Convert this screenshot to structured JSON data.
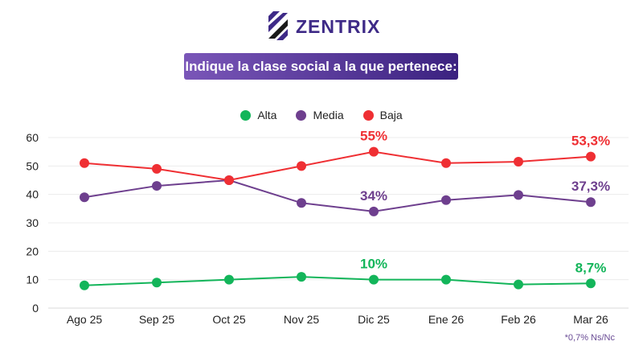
{
  "brand": {
    "name": "ZENTRIX"
  },
  "title": "Indique la clase social a la que pertenece:",
  "note": "*0,7% Ns/Nc",
  "chart_data": {
    "type": "line",
    "categories": [
      "Ago 25",
      "Sep 25",
      "Oct 25",
      "Nov 25",
      "Dic 25",
      "Ene 26",
      "Feb 26",
      "Mar 26"
    ],
    "ylim": [
      0,
      60
    ],
    "yticks": [
      0,
      10,
      20,
      30,
      40,
      50,
      60
    ],
    "grid": true,
    "legend": "top-center",
    "series": [
      {
        "name": "Alta",
        "color": "#13b55a",
        "values": [
          8,
          9,
          10,
          11,
          10,
          10,
          8.3,
          8.7
        ],
        "labels": [
          {
            "index": 4,
            "text": "10%"
          },
          {
            "index": 7,
            "text": "8,7%"
          }
        ]
      },
      {
        "name": "Media",
        "color": "#6e3f8e",
        "values": [
          39,
          43,
          45,
          37,
          34,
          38,
          39.8,
          37.3
        ],
        "labels": [
          {
            "index": 4,
            "text": "34%"
          },
          {
            "index": 7,
            "text": "37,3%"
          }
        ]
      },
      {
        "name": "Baja",
        "color": "#ef2f33",
        "values": [
          51,
          49,
          45,
          50,
          55,
          51,
          51.5,
          53.3
        ],
        "labels": [
          {
            "index": 4,
            "text": "55%"
          },
          {
            "index": 7,
            "text": "53,3%"
          }
        ]
      }
    ]
  }
}
